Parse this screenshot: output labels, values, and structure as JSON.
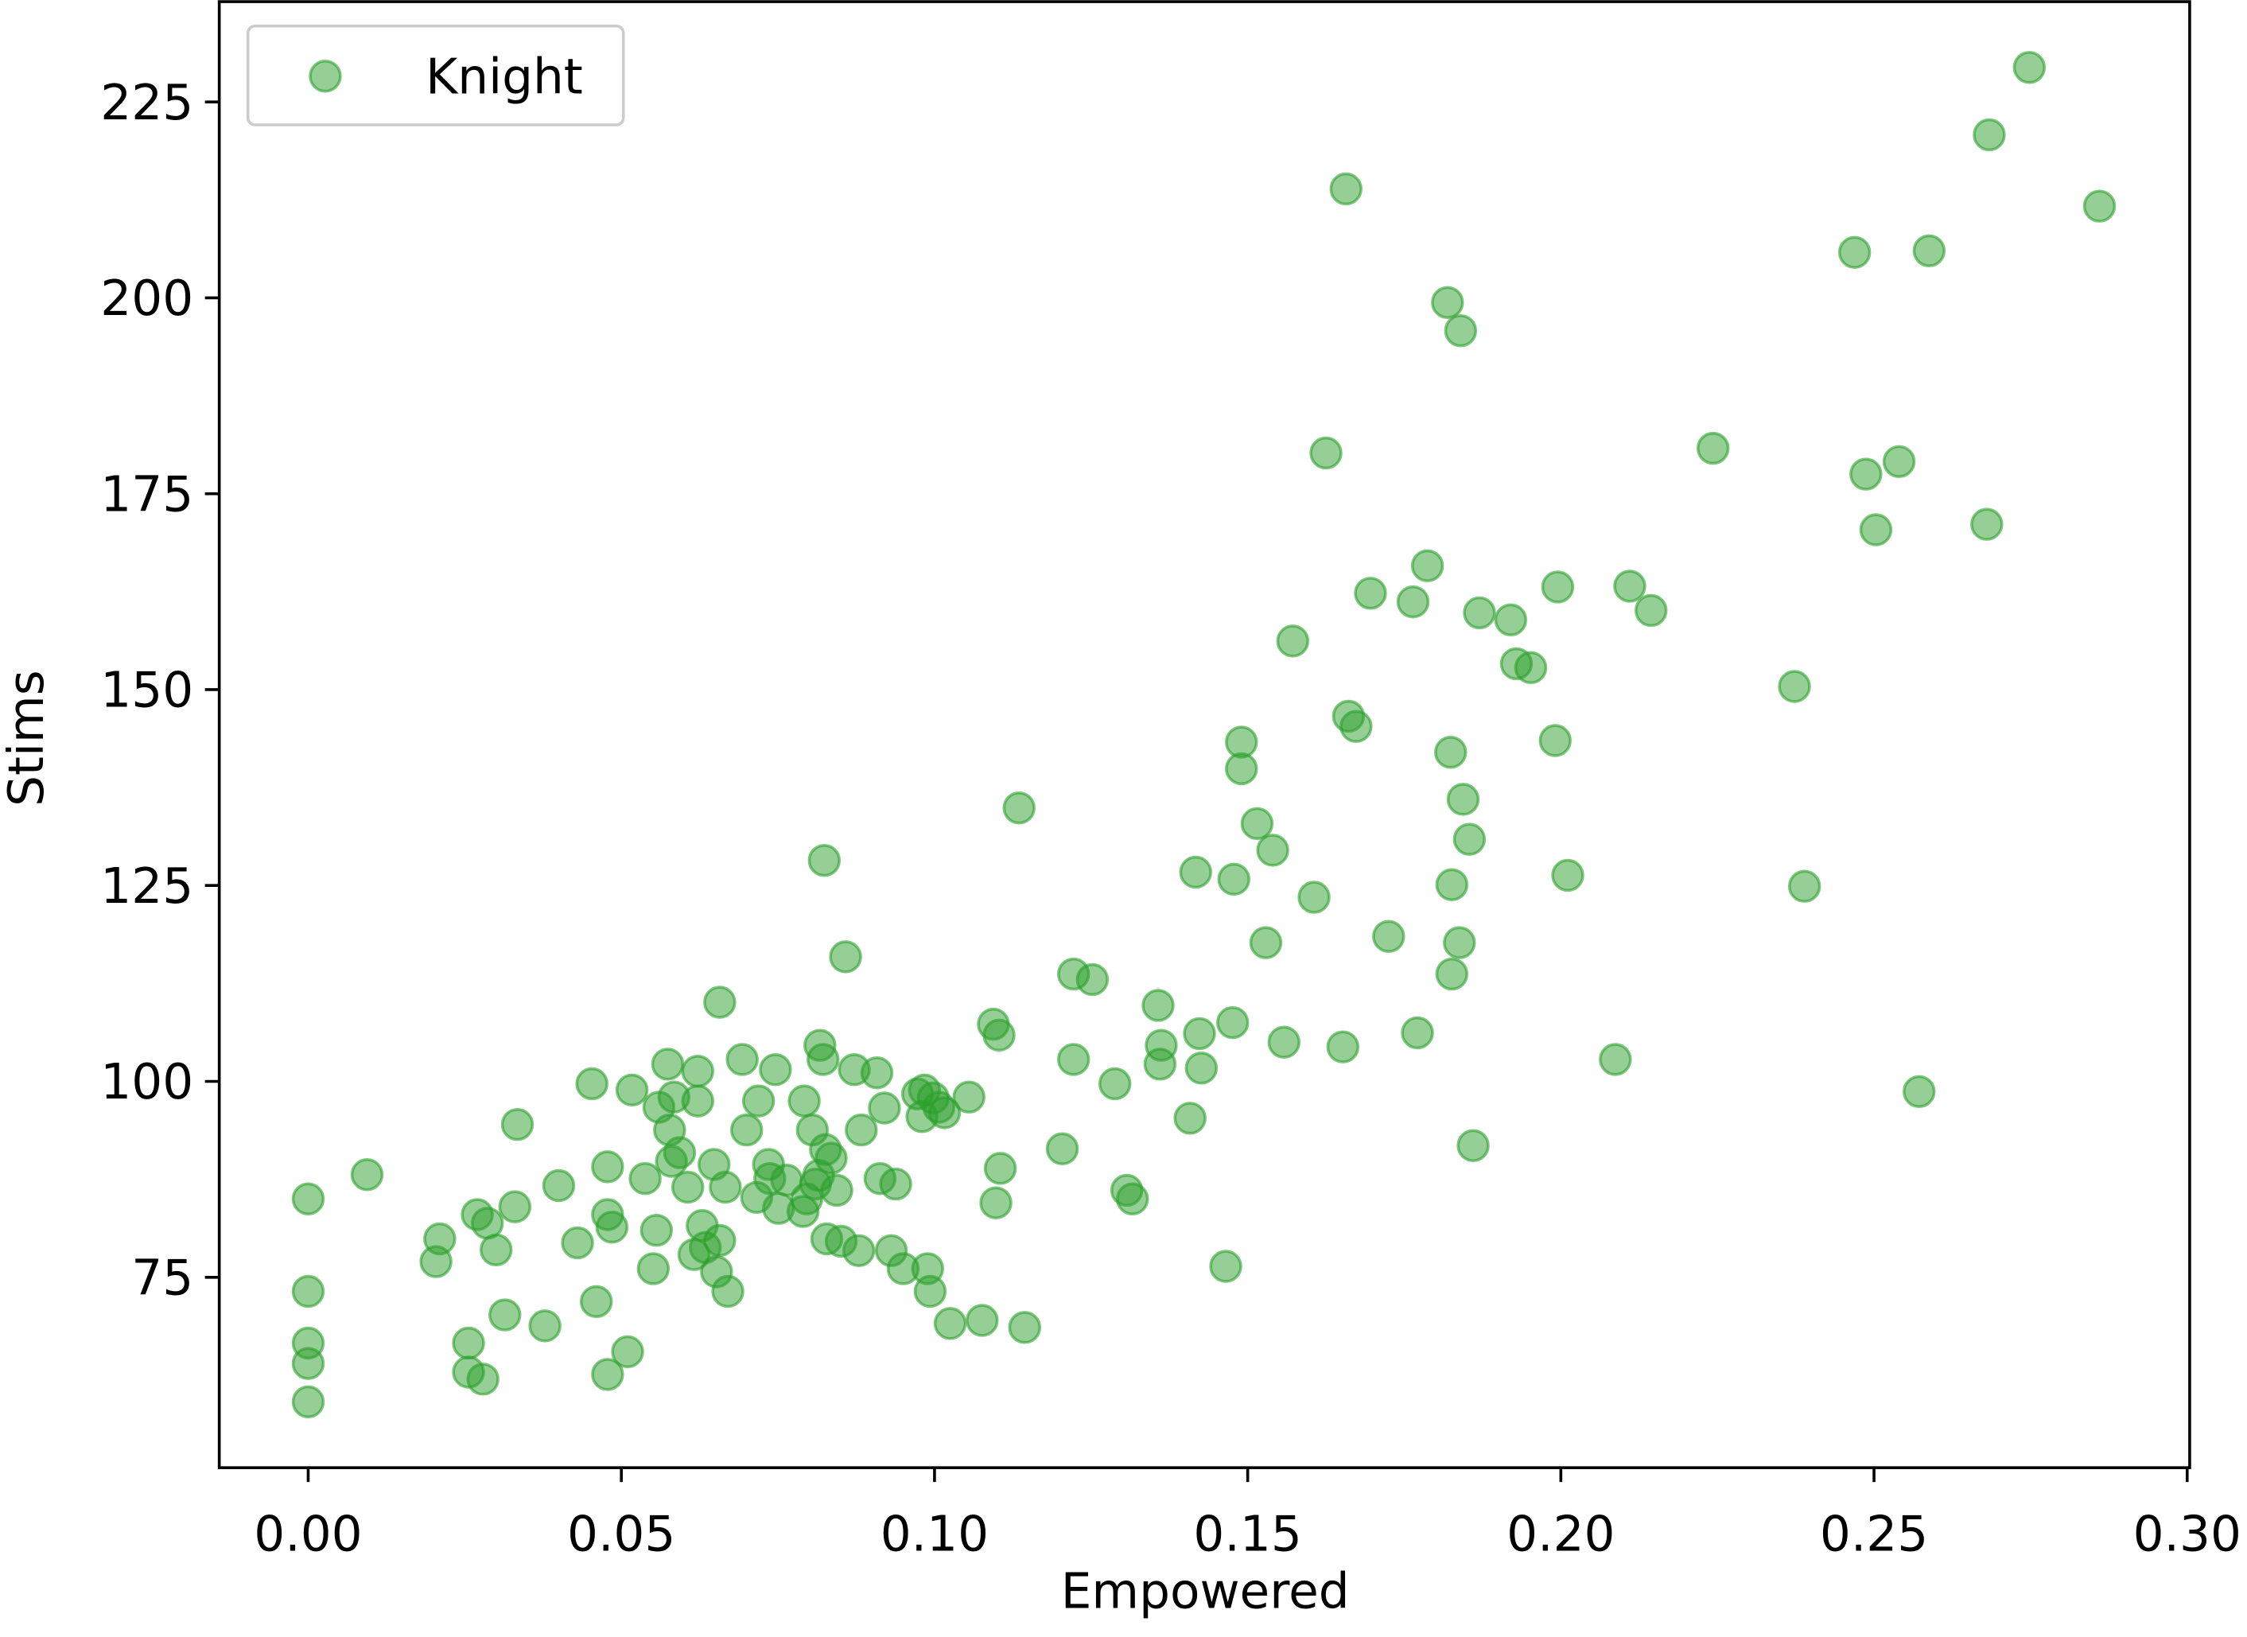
{
  "chart_data": {
    "type": "scatter",
    "x_label": "Empowered",
    "y_label": "Stims",
    "xlim": [
      -0.0142,
      0.3004
    ],
    "ylim": [
      50.7,
      237.8
    ],
    "xticks": [
      {
        "value": 0,
        "label": "0.00"
      },
      {
        "value": 0.05,
        "label": "0.05"
      },
      {
        "value": 0.1,
        "label": "0.10"
      },
      {
        "value": 0.15,
        "label": "0.15"
      },
      {
        "value": 0.2,
        "label": "0.20"
      },
      {
        "value": 0.25,
        "label": "0.25"
      },
      {
        "value": 0.3,
        "label": "0.30"
      }
    ],
    "yticks": [
      75,
      100,
      125,
      150,
      175,
      200,
      225
    ],
    "legend": "upper left",
    "x": [
      0,
      0,
      0,
      0,
      0,
      0.0094,
      0.021,
      0.0204,
      0.027,
      0.0286,
      0.03,
      0.033,
      0.0334,
      0.0256,
      0.0256,
      0.0279,
      0.0314,
      0.0378,
      0.04,
      0.043,
      0.0453,
      0.046,
      0.0478,
      0.0478,
      0.0485,
      0.0478,
      0.051,
      0.0517,
      0.0538,
      0.0556,
      0.0551,
      0.056,
      0.0574,
      0.0584,
      0.0577,
      0.058,
      0.0593,
      0.0606,
      0.0616,
      0.0622,
      0.0622,
      0.0629,
      0.0634,
      0.0648,
      0.0652,
      0.0657,
      0.0657,
      0.0666,
      0.067,
      0.0693,
      0.07,
      0.0719,
      0.0716,
      0.0735,
      0.0737,
      0.0746,
      0.0751,
      0.0764,
      0.079,
      0.0792,
      0.0796,
      0.0805,
      0.081,
      0.0817,
      0.0822,
      0.0824,
      0.0815,
      0.0826,
      0.0835,
      0.0828,
      0.0844,
      0.0851,
      0.0858,
      0.0872,
      0.0879,
      0.0883,
      0.0908,
      0.0913,
      0.092,
      0.0931,
      0.0938,
      0.095,
      0.0973,
      0.098,
      0.0984,
      0.0989,
      0.0993,
      0.0998,
      0.1007,
      0.1016,
      0.1025,
      0.1055,
      0.1076,
      0.1094,
      0.1103,
      0.1098,
      0.1105,
      0.1135,
      0.1144,
      0.1204,
      0.1222,
      0.1222,
      0.1252,
      0.1288,
      0.1307,
      0.1316,
      0.1357,
      0.1362,
      0.136,
      0.1408,
      0.1417,
      0.1423,
      0.1426,
      0.1465,
      0.1476,
      0.1478,
      0.149,
      0.149,
      0.1515,
      0.1529,
      0.154,
      0.1558,
      0.1572,
      0.1606,
      0.1625,
      0.1652,
      0.1657,
      0.1661,
      0.1673,
      0.1696,
      0.1725,
      0.1764,
      0.1771,
      0.1787,
      0.1819,
      0.1824,
      0.1826,
      0.1826,
      0.1838,
      0.184,
      0.1844,
      0.1854,
      0.186,
      0.187,
      0.192,
      0.1929,
      0.1952,
      0.1991,
      0.1995,
      0.2011,
      0.2087,
      0.211,
      0.2144,
      0.2243,
      0.2373,
      0.2389,
      0.2469,
      0.2487,
      0.2503,
      0.254,
      0.2572,
      0.2588,
      0.268,
      0.2684,
      0.2748,
      0.286
    ],
    "series": [
      {
        "name": "Knight",
        "color": "#2ca02c",
        "values": [
          85.0,
          73.2,
          66.6,
          64.0,
          59.1,
          88.1,
          79.9,
          77.0,
          83.0,
          81.9,
          78.5,
          84.0,
          94.5,
          66.6,
          62.9,
          62.0,
          70.2,
          68.8,
          86.7,
          79.4,
          99.7,
          71.9,
          89.1,
          83.0,
          81.4,
          62.6,
          65.5,
          98.9,
          87.6,
          81.0,
          76.1,
          96.7,
          102.2,
          98.0,
          93.8,
          89.8,
          90.9,
          86.5,
          77.9,
          101.3,
          97.5,
          81.6,
          78.8,
          89.4,
          75.7,
          110.1,
          79.7,
          86.5,
          73.2,
          102.8,
          93.8,
          97.5,
          85.2,
          89.4,
          87.6,
          101.5,
          83.8,
          87.4,
          83.4,
          97.5,
          85.0,
          93.8,
          86.9,
          104.6,
          102.8,
          128.2,
          88.0,
          91.3,
          90.2,
          79.9,
          86.1,
          79.6,
          115.9,
          101.5,
          78.4,
          93.8,
          101.1,
          87.6,
          96.6,
          78.4,
          86.9,
          76.1,
          98.4,
          95.5,
          98.9,
          76.1,
          73.2,
          97.9,
          96.7,
          96.0,
          69.1,
          98.0,
          69.5,
          107.3,
          105.9,
          84.5,
          88.9,
          134.9,
          68.6,
          91.4,
          113.7,
          102.8,
          113.0,
          99.7,
          86.1,
          85.0,
          109.7,
          104.6,
          102.2,
          95.3,
          126.7,
          106.1,
          101.7,
          76.4,
          107.5,
          125.8,
          143.3,
          139.9,
          132.9,
          117.7,
          129.5,
          105.0,
          156.2,
          123.5,
          180.2,
          104.4,
          213.9,
          146.6,
          145.3,
          162.3,
          118.5,
          161.2,
          106.2,
          165.8,
          199.4,
          142.0,
          125.1,
          113.7,
          117.7,
          195.8,
          136.0,
          130.9,
          91.8,
          159.8,
          158.9,
          153.3,
          152.8,
          143.5,
          163.1,
          126.3,
          102.8,
          163.2,
          160.1,
          180.8,
          150.4,
          124.9,
          205.8,
          177.5,
          170.4,
          179.1,
          98.7,
          206.0,
          171.1,
          220.8,
          229.4,
          211.7
        ]
      }
    ]
  }
}
